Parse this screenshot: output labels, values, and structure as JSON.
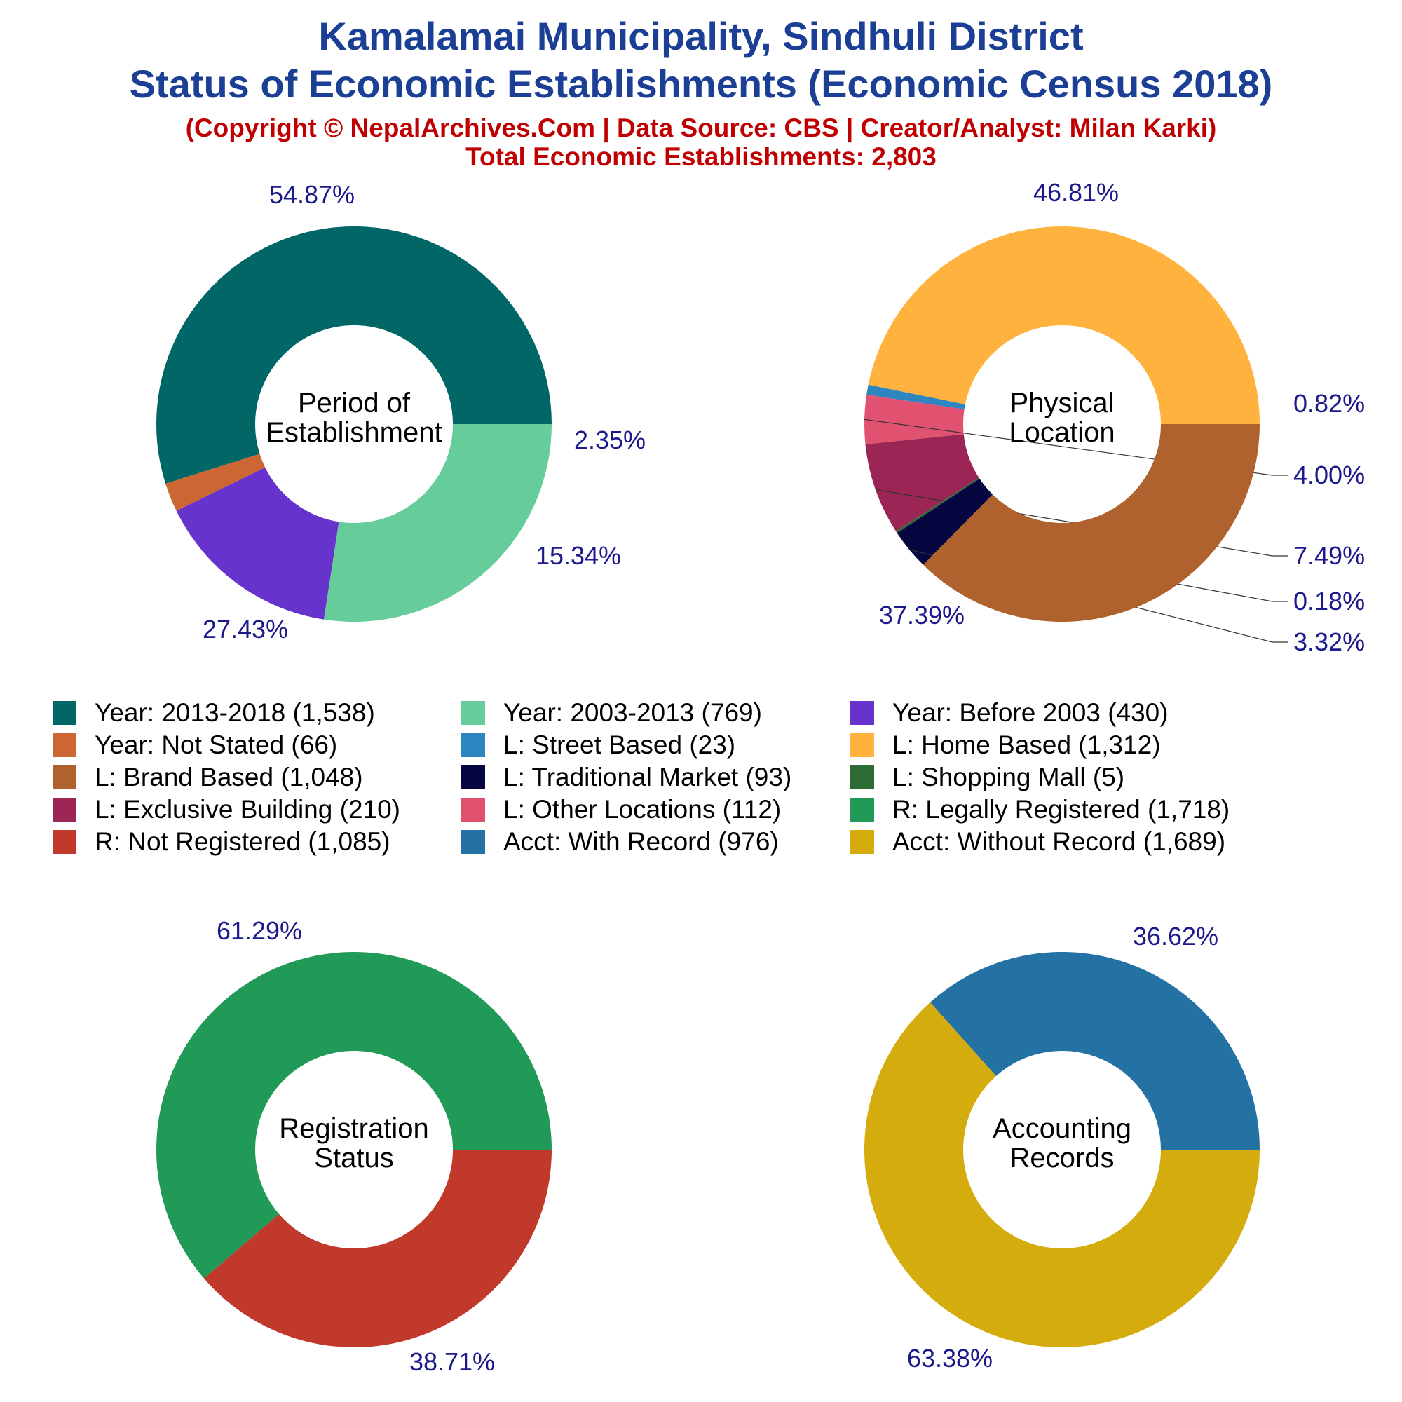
{
  "header": {
    "title_line1": "Kamalamai Municipality, Sindhuli District",
    "title_line2": "Status of Economic Establishments (Economic Census 2018)",
    "copyright": "(Copyright © NepalArchives.Com | Data Source: CBS | Creator/Analyst: Milan Karki)",
    "total": "Total Economic Establishments: 2,803"
  },
  "chart_data": [
    {
      "type": "pie",
      "center_label": [
        "Period of",
        "Establishment"
      ],
      "slices": [
        {
          "label": "Year: 2013-2018",
          "value": 1538,
          "pct_label": "54.87%",
          "color": "#006666"
        },
        {
          "label": "Year: Not Stated",
          "value": 66,
          "pct_label": "2.35%",
          "color": "#cc6633"
        },
        {
          "label": "Year: Before 2003",
          "value": 430,
          "pct_label": "15.34%",
          "color": "#6633cc"
        },
        {
          "label": "Year: 2003-2013",
          "value": 769,
          "pct_label": "27.43%",
          "color": "#66cc99"
        }
      ]
    },
    {
      "type": "pie",
      "center_label": [
        "Physical",
        "Location"
      ],
      "slices": [
        {
          "label": "L: Home Based",
          "value": 1312,
          "pct_label": "46.81%",
          "color": "#ffb33e"
        },
        {
          "label": "L: Street Based",
          "value": 23,
          "pct_label": "0.82%",
          "color": "#2e86c1"
        },
        {
          "label": "L: Other Locations",
          "value": 112,
          "pct_label": "4.00%",
          "color": "#e05270"
        },
        {
          "label": "L: Exclusive Building",
          "value": 210,
          "pct_label": "7.49%",
          "color": "#9b2555"
        },
        {
          "label": "L: Shopping Mall",
          "value": 5,
          "pct_label": "0.18%",
          "color": "#2d6a35"
        },
        {
          "label": "L: Traditional Market",
          "value": 93,
          "pct_label": "3.32%",
          "color": "#05053f"
        },
        {
          "label": "L: Brand Based",
          "value": 1048,
          "pct_label": "37.39%",
          "color": "#b0622e"
        }
      ]
    },
    {
      "type": "pie",
      "center_label": [
        "Registration",
        "Status"
      ],
      "slices": [
        {
          "label": "R: Legally Registered",
          "value": 1718,
          "pct_label": "61.29%",
          "color": "#229a57"
        },
        {
          "label": "R: Not Registered",
          "value": 1085,
          "pct_label": "38.71%",
          "color": "#c0392b"
        }
      ]
    },
    {
      "type": "pie",
      "center_label": [
        "Accounting",
        "Records"
      ],
      "slices": [
        {
          "label": "Acct: With Record",
          "value": 976,
          "pct_label": "36.62%",
          "color": "#2471a3"
        },
        {
          "label": "Acct: Without Record",
          "value": 1689,
          "pct_label": "63.38%",
          "color": "#d4ac0d"
        }
      ]
    }
  ],
  "legend": [
    {
      "text": "Year: 2013-2018 (1,538)",
      "color": "#006666"
    },
    {
      "text": "Year: 2003-2013 (769)",
      "color": "#66cc99"
    },
    {
      "text": "Year: Before 2003 (430)",
      "color": "#6633cc"
    },
    {
      "text": "Year: Not Stated (66)",
      "color": "#cc6633"
    },
    {
      "text": "L: Street Based (23)",
      "color": "#2e86c1"
    },
    {
      "text": "L: Home Based (1,312)",
      "color": "#ffb33e"
    },
    {
      "text": "L: Brand Based (1,048)",
      "color": "#b0622e"
    },
    {
      "text": "L: Traditional Market (93)",
      "color": "#05053f"
    },
    {
      "text": "L: Shopping Mall (5)",
      "color": "#2d6a35"
    },
    {
      "text": "L: Exclusive Building (210)",
      "color": "#9b2555"
    },
    {
      "text": "L: Other Locations (112)",
      "color": "#e05270"
    },
    {
      "text": "R: Legally Registered (1,718)",
      "color": "#229a57"
    },
    {
      "text": "R: Not Registered (1,085)",
      "color": "#c0392b"
    },
    {
      "text": "Acct: With Record (976)",
      "color": "#2471a3"
    },
    {
      "text": "Acct: Without Record (1,689)",
      "color": "#d4ac0d"
    }
  ]
}
